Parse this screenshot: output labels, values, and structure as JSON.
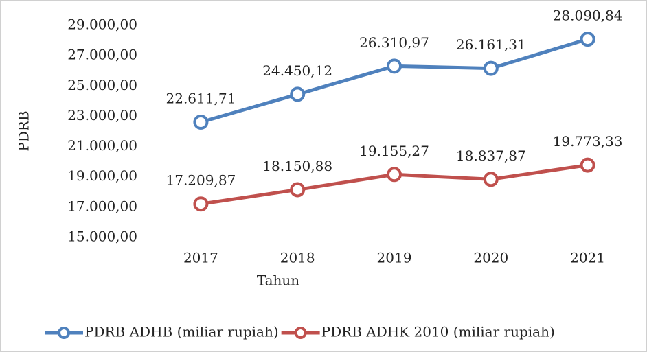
{
  "chart_data": {
    "type": "line",
    "xlabel": "Tahun",
    "ylabel": "PDRB",
    "categories": [
      "2017",
      "2018",
      "2019",
      "2020",
      "2021"
    ],
    "series": [
      {
        "name": "PDRB ADHB (miliar rupiah)",
        "color": "#4f81bd",
        "values": [
          22611.71,
          24450.12,
          26310.97,
          26161.31,
          28090.84
        ],
        "value_labels": [
          "22.611,71",
          "24.450,12",
          "26.310,97",
          "26.161,31",
          "28.090,84"
        ]
      },
      {
        "name": "PDRB ADHK 2010 (miliar rupiah)",
        "color": "#c0504d",
        "values": [
          17209.87,
          18150.88,
          19155.27,
          18837.87,
          19773.33
        ],
        "value_labels": [
          "17.209,87",
          "18.150,88",
          "19.155,27",
          "18.837,87",
          "19.773,33"
        ]
      }
    ],
    "ylim": [
      15000,
      29000
    ],
    "yticks": [
      {
        "value": 15000,
        "label": "15.000,00"
      },
      {
        "value": 17000,
        "label": "17.000,00"
      },
      {
        "value": 19000,
        "label": "19.000,00"
      },
      {
        "value": 21000,
        "label": "21.000,00"
      },
      {
        "value": 23000,
        "label": "23.000,00"
      },
      {
        "value": 25000,
        "label": "25.000,00"
      },
      {
        "value": 27000,
        "label": "27.000,00"
      },
      {
        "value": 29000,
        "label": "29.000,00"
      }
    ],
    "grid": false,
    "legend": "bottom"
  }
}
